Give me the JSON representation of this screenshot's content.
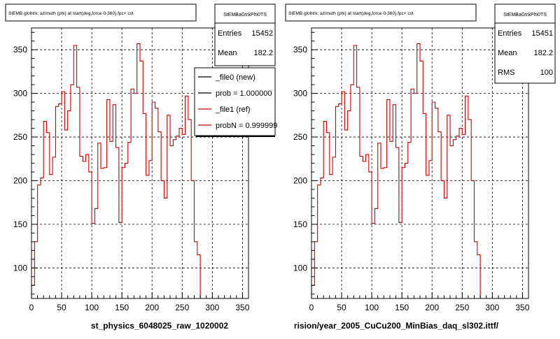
{
  "chart_data": [
    {
      "type": "line",
      "title": "StEMB globtrk: azimuth (phi) at start(deg,force 0-360),fpc+ cvt",
      "stats": {
        "name": "StEMBaGtrkPhi0TS",
        "rows": [
          {
            "label": "Entries",
            "value": "15452"
          },
          {
            "label": "Mean",
            "value": "182.2"
          }
        ]
      },
      "legend": {
        "entries": [
          {
            "label": "_file0 (new)",
            "color": "#000000"
          },
          {
            "label": "prob = 1.000000",
            "color": "#000000"
          },
          {
            "label": "_file1 (ref)",
            "color": "#cc0000"
          },
          {
            "label": "probN = 0.999999",
            "color": "#cc0000"
          }
        ]
      },
      "xlabel": "st_physics_6048025_raw_1020002",
      "xlim": [
        0,
        360
      ],
      "ylim": [
        65,
        375
      ],
      "x_ticks": [
        0,
        50,
        100,
        150,
        200,
        250,
        300,
        350
      ],
      "y_ticks": [
        100,
        150,
        200,
        250,
        300,
        350
      ],
      "grid": true,
      "bin_width": 5,
      "series": [
        {
          "color": "#cc0000",
          "values": [
            80,
            130,
            195,
            203,
            268,
            255,
            207,
            227,
            285,
            288,
            302,
            258,
            280,
            310,
            355,
            307,
            228,
            222,
            230,
            210,
            151,
            168,
            243,
            214,
            215,
            293,
            245,
            287,
            238,
            152,
            215,
            220,
            244,
            305,
            300,
            357,
            337,
            277,
            206,
            223,
            290,
            283,
            256,
            200,
            180,
            275,
            240,
            247,
            251,
            260,
            253,
            297,
            270,
            200,
            130,
            115
          ]
        }
      ]
    },
    {
      "type": "line",
      "title": "StEMB globtrk: azimuth (phi) at start(deg,force 0-360),fpc+ cvt",
      "stats": {
        "name": "StEMBaGtrkPhi0TS",
        "rows": [
          {
            "label": "Entries",
            "value": "15451"
          },
          {
            "label": "Mean",
            "value": "182.2"
          },
          {
            "label": "RMS",
            "value": "100"
          }
        ]
      },
      "xlabel": "rision/year_2005_CuCu200_MinBias_daq_sl302.ittf/",
      "xlim": [
        0,
        360
      ],
      "ylim": [
        65,
        375
      ],
      "x_ticks": [
        0,
        50,
        100,
        150,
        200,
        250,
        300,
        350
      ],
      "y_ticks": [
        100,
        150,
        200,
        250,
        300,
        350
      ],
      "grid": true,
      "bin_width": 5,
      "series": [
        {
          "color": "#cc0000",
          "values": [
            80,
            130,
            195,
            203,
            268,
            255,
            207,
            227,
            285,
            288,
            302,
            258,
            280,
            310,
            355,
            307,
            228,
            222,
            230,
            210,
            151,
            168,
            243,
            214,
            215,
            293,
            245,
            287,
            238,
            152,
            215,
            220,
            244,
            305,
            300,
            357,
            337,
            277,
            206,
            223,
            290,
            283,
            256,
            200,
            180,
            275,
            240,
            247,
            251,
            260,
            253,
            297,
            270,
            200,
            130,
            115
          ]
        }
      ]
    }
  ]
}
